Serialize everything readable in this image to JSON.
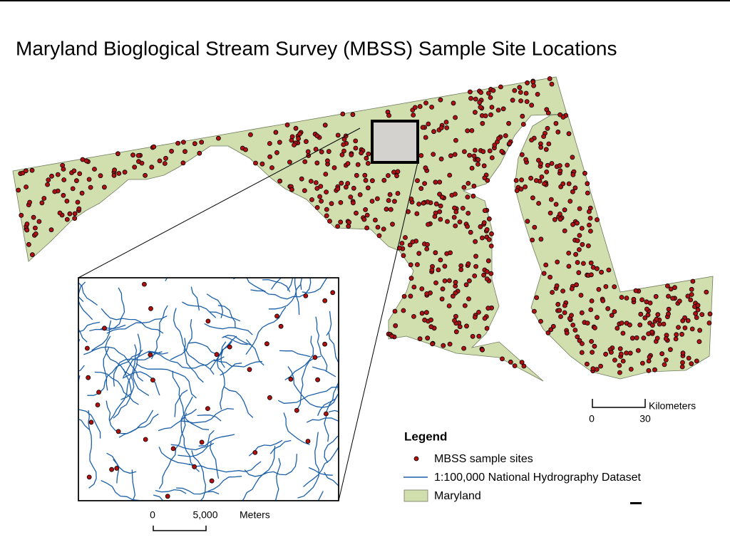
{
  "title": "Maryland Bioglogical Stream Survey (MBSS) Sample Site Locations",
  "legend": {
    "title": "Legend",
    "items": [
      "MBSS sample sites",
      "1:100,000 National Hydrography Dataset",
      "Maryland"
    ]
  },
  "main_scale": {
    "labels": [
      "0",
      "30"
    ],
    "unit": "Kilometers"
  },
  "inset_scale": {
    "labels": [
      "0",
      "5,000"
    ],
    "unit": "Meters"
  }
}
